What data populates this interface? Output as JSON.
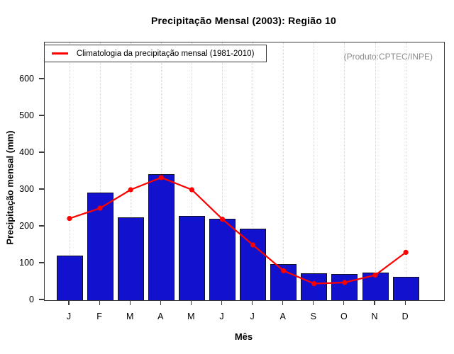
{
  "title": "Precipitação Mensal (2003): Região 10",
  "annotation": "(Produto:CPTEC/INPE)",
  "legend": {
    "label": "Climatologia da precipitação mensal (1981-2010)"
  },
  "chart_data": {
    "type": "bar",
    "title": "Precipitação Mensal (2003): Região 10",
    "xlabel": "Mês",
    "ylabel": "Precipitação mensal (mm)",
    "categories": [
      "J",
      "F",
      "M",
      "A",
      "M",
      "J",
      "J",
      "A",
      "S",
      "O",
      "N",
      "D"
    ],
    "series": [
      {
        "name": "Precipitação mensal 2003",
        "type": "bar",
        "color": "#1212ce",
        "values": [
          122,
          292,
          226,
          343,
          228,
          222,
          195,
          98,
          73,
          71,
          75,
          64
        ]
      },
      {
        "name": "Climatologia da precipitação mensal (1981-2010)",
        "type": "line",
        "color": "#ff0000",
        "values": [
          222,
          250,
          300,
          333,
          300,
          220,
          150,
          80,
          45,
          48,
          68,
          130
        ]
      }
    ],
    "ylim": [
      0,
      700
    ],
    "yticks": [
      0,
      100,
      200,
      300,
      400,
      500,
      600
    ],
    "grid": "vertical-dotted",
    "legend_position": "top-left",
    "annotation": "(Produto:CPTEC/INPE)"
  },
  "colors": {
    "bar_fill": "#1212ce",
    "bar_border": "#101024",
    "line": "#ff0000",
    "grid": "#d8d8d8",
    "axis": "#3a3a3a",
    "annotation_text": "#8c8c8c"
  }
}
